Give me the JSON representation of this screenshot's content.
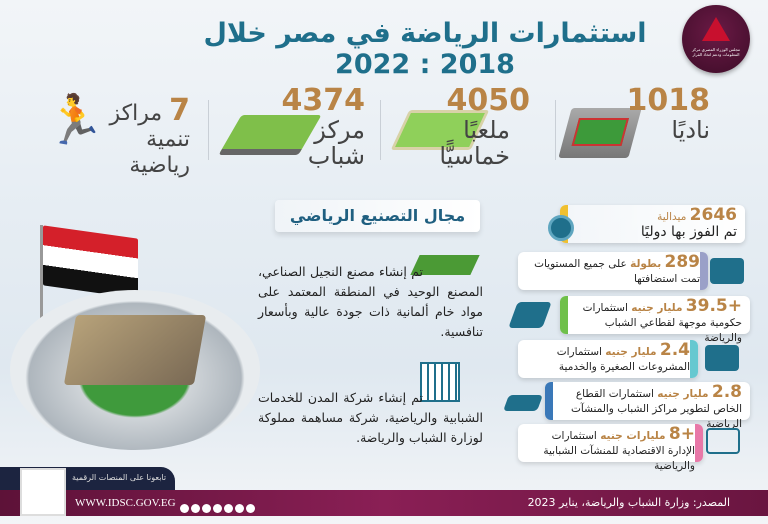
{
  "title": "استثمارات الرياضة في مصر خلال 2018 : 2022",
  "logo_text": "مجلس الوزراء المصري مركز المعلومات ودعم اتخاذ القرار",
  "stats": [
    {
      "number": "1018",
      "label": "ناديًا"
    },
    {
      "number": "4050",
      "label": "ملعبًا خماسيًّا"
    },
    {
      "number": "4374",
      "label": "مركز شباب"
    },
    {
      "number": "7",
      "label": "مراكز تنمية رياضية"
    }
  ],
  "manufacturing": {
    "heading": "مجال التصنيع الرياضي",
    "items": [
      "تم إنشاء مصنع النجيل الصناعي، المصنع الوحيد في المنطقة المعتمد على مواد خام ألمانية ذات جودة عالية وبأسعار تنافسية.",
      "تم إنشاء شركة المدن للخدمات الشبابية والرياضية، شركة مساهمة مملوكة لوزارة الشباب والرياضة."
    ]
  },
  "cards": [
    {
      "value": "2646",
      "unit": "ميدالية",
      "text": "تم الفوز بها دوليًا",
      "accent": "#f0c030",
      "icon": "medal-icon"
    },
    {
      "value": "289",
      "unit": "بطولة",
      "text": "على جميع المستويات تمت استضافتها",
      "accent": "#9aa0c8",
      "icon": "arena-icon"
    },
    {
      "value": "+39.5",
      "unit": "مليار جنيه",
      "text": "استثمارات حكومية موجهة لقطاعي الشباب والرياضة",
      "accent": "#6fc04a",
      "icon": "money-stack-icon"
    },
    {
      "value": "2.4",
      "unit": "مليار جنيه",
      "text": "استثمارات المشروعات الصغيرة والخدمية",
      "accent": "#66c8d0",
      "icon": "hand-money-icon"
    },
    {
      "value": "2.8",
      "unit": "مليار جنيه",
      "text": "استثمارات القطاع الخاص لتطوير مراكز الشباب والمنشآت الرياضية",
      "accent": "#3a78b8",
      "icon": "cash-bundle-icon"
    },
    {
      "value": "+8",
      "unit": "مليارات جنيه",
      "text": "استثمارات الإدارة الاقتصادية للمنشآت الشبابية والرياضية",
      "accent": "#e878a8",
      "icon": "facility-icon"
    }
  ],
  "footer": {
    "follow": "تابعونا على المنصات الرقمية",
    "website": "WWW.IDSC.GOV.EG",
    "source": "المصدر: وزارة الشباب والرياضة، يناير 2023"
  },
  "colors": {
    "number": "#b98446",
    "title": "#1f6f8b",
    "footer": "#7a1a4a"
  }
}
